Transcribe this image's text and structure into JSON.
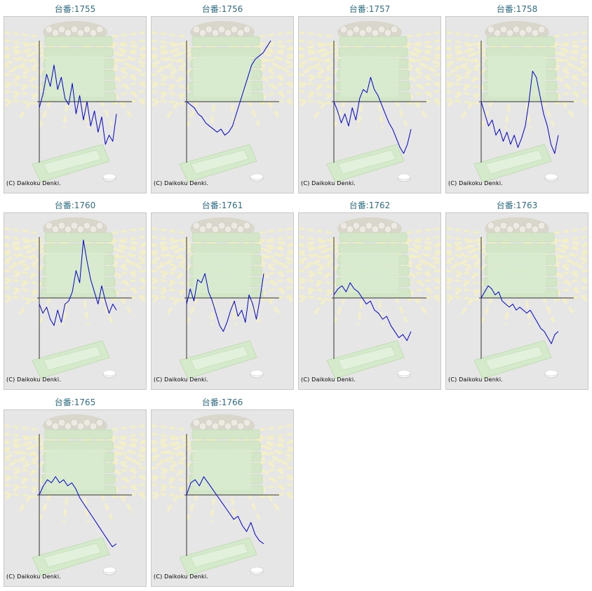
{
  "page": {
    "title_prefix": "台番:",
    "copyright": "(C) Daikoku Denki."
  },
  "colors": {
    "line": "#0000cc",
    "axis": "#333333",
    "title": "#2f6f86",
    "panel_bg": "#e6e6e6"
  },
  "machines": [
    {
      "id": "1755",
      "title": "台番:1755",
      "copyright": "(C) Daikoku Denki."
    },
    {
      "id": "1756",
      "title": "台番:1756",
      "copyright": "(C) Daikoku Denki."
    },
    {
      "id": "1757",
      "title": "台番:1757",
      "copyright": "(C) Daikoku Denki."
    },
    {
      "id": "1758",
      "title": "台番:1758",
      "copyright": "(C) Daikoku Denki."
    },
    {
      "id": "1760",
      "title": "台番:1760",
      "copyright": "(C) Daikoku Denki."
    },
    {
      "id": "1761",
      "title": "台番:1761",
      "copyright": "(C) Daikoku Denki."
    },
    {
      "id": "1762",
      "title": "台番:1762",
      "copyright": "(C) Daikoku Denki."
    },
    {
      "id": "1763",
      "title": "台番:1763",
      "copyright": "(C) Daikoku Denki."
    },
    {
      "id": "1765",
      "title": "台番:1765",
      "copyright": "(C) Daikoku Denki."
    },
    {
      "id": "1766",
      "title": "台番:1766",
      "copyright": "(C) Daikoku Denki."
    }
  ],
  "chart_data": [
    {
      "type": "line",
      "title": "台番:1755",
      "ylim": [
        -100,
        100
      ],
      "series": [
        {
          "values": [
            -10,
            12,
            45,
            25,
            60,
            20,
            40,
            5,
            -5,
            30,
            -20,
            10,
            -30,
            0,
            -40,
            -15,
            -50,
            -25,
            -70,
            -55,
            -65,
            -20
          ]
        }
      ]
    },
    {
      "type": "line",
      "title": "台番:1756",
      "ylim": [
        -100,
        100
      ],
      "series": [
        {
          "values": [
            0,
            -5,
            -10,
            -20,
            -25,
            -35,
            -40,
            -45,
            -50,
            -45,
            -55,
            -50,
            -40,
            -20,
            0,
            20,
            40,
            60,
            70,
            75,
            80,
            90,
            100
          ]
        }
      ]
    },
    {
      "type": "line",
      "title": "台番:1757",
      "ylim": [
        -100,
        100
      ],
      "series": [
        {
          "values": [
            0,
            -15,
            -35,
            -20,
            -40,
            -10,
            -30,
            5,
            20,
            15,
            40,
            20,
            10,
            -5,
            -20,
            -35,
            -45,
            -60,
            -75,
            -85,
            -70,
            -45
          ]
        }
      ]
    },
    {
      "type": "line",
      "title": "台番:1758",
      "ylim": [
        -100,
        100
      ],
      "series": [
        {
          "values": [
            0,
            -20,
            -40,
            -30,
            -55,
            -45,
            -65,
            -50,
            -70,
            -55,
            -75,
            -60,
            -40,
            0,
            50,
            40,
            10,
            -20,
            -40,
            -70,
            -85,
            -55
          ]
        }
      ]
    },
    {
      "type": "line",
      "title": "台番:1760",
      "ylim": [
        -100,
        100
      ],
      "series": [
        {
          "values": [
            -10,
            -25,
            -15,
            -35,
            -45,
            -20,
            -40,
            -10,
            -5,
            10,
            45,
            25,
            95,
            60,
            30,
            10,
            -10,
            20,
            -5,
            -25,
            -10,
            -20
          ]
        }
      ]
    },
    {
      "type": "line",
      "title": "台番:1761",
      "ylim": [
        -100,
        100
      ],
      "series": [
        {
          "values": [
            -10,
            15,
            -5,
            30,
            25,
            40,
            10,
            -5,
            -25,
            -45,
            -55,
            -40,
            -20,
            -5,
            -30,
            -20,
            -40,
            5,
            -10,
            -35,
            0,
            40
          ]
        }
      ]
    },
    {
      "type": "line",
      "title": "台番:1762",
      "ylim": [
        -100,
        100
      ],
      "series": [
        {
          "values": [
            5,
            15,
            20,
            10,
            25,
            15,
            10,
            0,
            -10,
            -5,
            -20,
            -25,
            -35,
            -30,
            -45,
            -55,
            -65,
            -60,
            -70,
            -55
          ]
        }
      ]
    },
    {
      "type": "line",
      "title": "台番:1763",
      "ylim": [
        -100,
        100
      ],
      "series": [
        {
          "values": [
            0,
            10,
            20,
            15,
            5,
            10,
            -5,
            -10,
            -15,
            -10,
            -20,
            -15,
            -20,
            -25,
            -20,
            -30,
            -40,
            -50,
            -55,
            -65,
            -75,
            -60,
            -55
          ]
        }
      ]
    },
    {
      "type": "line",
      "title": "台番:1765",
      "ylim": [
        -100,
        100
      ],
      "series": [
        {
          "values": [
            0,
            15,
            25,
            20,
            30,
            20,
            25,
            15,
            20,
            10,
            -5,
            -15,
            -25,
            -35,
            -45,
            -55,
            -65,
            -75,
            -85,
            -80
          ]
        }
      ]
    },
    {
      "type": "line",
      "title": "台番:1766",
      "ylim": [
        -100,
        100
      ],
      "series": [
        {
          "values": [
            0,
            20,
            25,
            15,
            30,
            20,
            10,
            0,
            -10,
            -20,
            -30,
            -40,
            -35,
            -50,
            -60,
            -45,
            -65,
            -75,
            -80
          ]
        }
      ]
    }
  ]
}
